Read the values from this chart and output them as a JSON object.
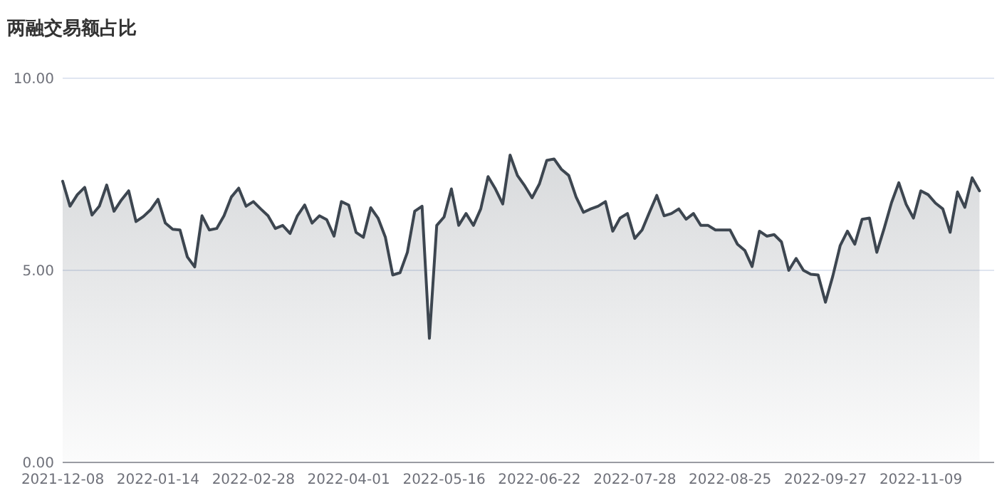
{
  "chart_data": {
    "type": "area",
    "title": "两融交易额占比",
    "categories": [
      "2021-12-08",
      null,
      null,
      null,
      null,
      null,
      null,
      null,
      null,
      null,
      null,
      null,
      null,
      "2022-01-14",
      null,
      null,
      null,
      null,
      null,
      null,
      null,
      null,
      null,
      null,
      null,
      null,
      "2022-02-28",
      null,
      null,
      null,
      null,
      null,
      null,
      null,
      null,
      null,
      null,
      null,
      null,
      "2022-04-01",
      null,
      null,
      null,
      null,
      null,
      null,
      null,
      null,
      null,
      null,
      null,
      null,
      "2022-05-16",
      null,
      null,
      null,
      null,
      null,
      null,
      null,
      null,
      null,
      null,
      null,
      null,
      "2022-06-22",
      null,
      null,
      null,
      null,
      null,
      null,
      null,
      null,
      null,
      null,
      null,
      null,
      "2022-07-28",
      null,
      null,
      null,
      null,
      null,
      null,
      null,
      null,
      null,
      null,
      null,
      null,
      "2022-08-25",
      null,
      null,
      null,
      null,
      null,
      null,
      null,
      null,
      null,
      null,
      null,
      null,
      "2022-09-27",
      null,
      null,
      null,
      null,
      null,
      null,
      null,
      null,
      null,
      null,
      null,
      null,
      "2022-11-09",
      null,
      null,
      null,
      null,
      null,
      null,
      null,
      null,
      null,
      null
    ],
    "series": [
      {
        "color": "#3d4650",
        "values": [
          7.32,
          6.67,
          6.97,
          7.16,
          6.44,
          6.67,
          7.22,
          6.54,
          6.83,
          7.07,
          6.27,
          6.4,
          6.58,
          6.85,
          6.23,
          6.07,
          6.05,
          5.35,
          5.09,
          6.42,
          6.05,
          6.09,
          6.42,
          6.91,
          7.14,
          6.67,
          6.79,
          6.6,
          6.42,
          6.09,
          6.17,
          5.96,
          6.42,
          6.7,
          6.23,
          6.42,
          6.32,
          5.89,
          6.79,
          6.7,
          5.99,
          5.86,
          6.63,
          6.36,
          5.86,
          4.88,
          4.94,
          5.47,
          6.54,
          6.67,
          3.23,
          6.17,
          6.39,
          7.12,
          6.17,
          6.48,
          6.17,
          6.6,
          7.44,
          7.12,
          6.73,
          8.0,
          7.47,
          7.2,
          6.89,
          7.25,
          7.86,
          7.9,
          7.63,
          7.47,
          6.91,
          6.51,
          6.6,
          6.67,
          6.79,
          6.02,
          6.36,
          6.48,
          5.83,
          6.05,
          6.51,
          6.95,
          6.42,
          6.48,
          6.6,
          6.33,
          6.48,
          6.17,
          6.17,
          6.05,
          6.05,
          6.05,
          5.68,
          5.52,
          5.1,
          6.02,
          5.89,
          5.93,
          5.74,
          5.0,
          5.31,
          5.0,
          4.9,
          4.88,
          4.17,
          4.85,
          5.64,
          6.02,
          5.68,
          6.33,
          6.36,
          5.47,
          6.09,
          6.76,
          7.28,
          6.72,
          6.36,
          7.07,
          6.97,
          6.75,
          6.6,
          5.99,
          7.04,
          6.64,
          7.41,
          7.07,
          null,
          null
        ]
      }
    ],
    "ylim": [
      0,
      10
    ],
    "yticks": [
      {
        "value": 0,
        "label": "0.00"
      },
      {
        "value": 5,
        "label": "5.00"
      },
      {
        "value": 10,
        "label": "10.00"
      }
    ],
    "grid": "y"
  }
}
